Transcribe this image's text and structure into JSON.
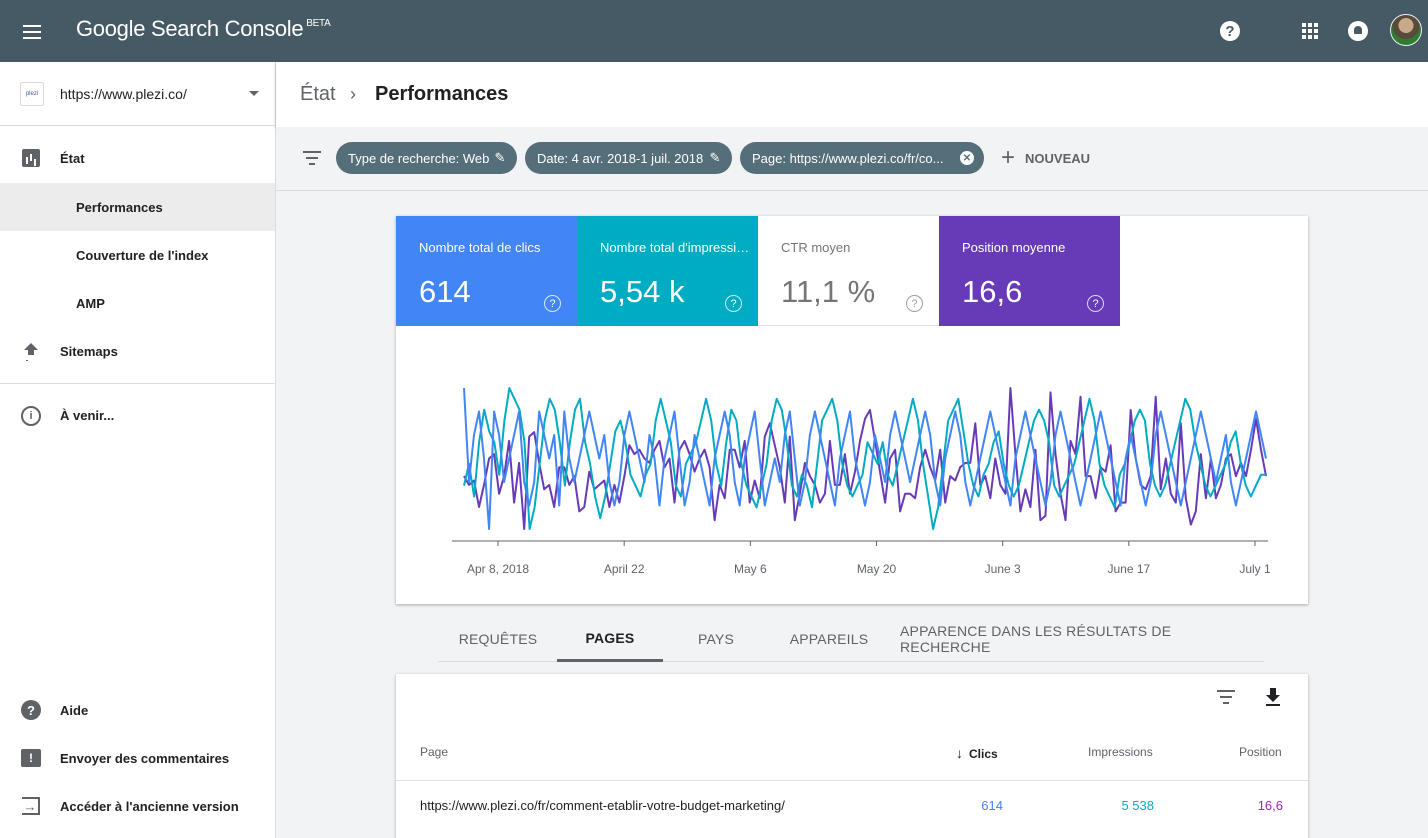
{
  "app": {
    "name": "Google Search Console",
    "badge": "BETA"
  },
  "topbar": {
    "menu_icon": "menu-icon",
    "help_icon": "help-icon",
    "apps_icon": "apps-grid-icon",
    "notifications_icon": "bell-icon"
  },
  "sidebar": {
    "property_url": "https://www.plezi.co/",
    "items": [
      {
        "label": "État",
        "icon": "bar-chart-icon"
      },
      {
        "label": "Performances"
      },
      {
        "label": "Couverture de l'index"
      },
      {
        "label": "AMP"
      },
      {
        "label": "Sitemaps",
        "icon": "upload-icon"
      },
      {
        "label": "À venir...",
        "icon": "info-icon"
      }
    ],
    "footer": [
      {
        "label": "Aide",
        "icon": "help-icon"
      },
      {
        "label": "Envoyer des commentaires",
        "icon": "feedback-icon"
      },
      {
        "label": "Accéder à l'ancienne version",
        "icon": "exit-icon"
      }
    ]
  },
  "breadcrumb": {
    "parent": "État",
    "separator": "›",
    "current": "Performances"
  },
  "filters": {
    "chips": [
      "Type de recherche: Web",
      "Date: 4 avr. 2018-1 juil. 2018",
      "Page: https://www.plezi.co/fr/co..."
    ],
    "new_label": "NOUVEAU"
  },
  "metrics": [
    {
      "label": "Nombre total de clics",
      "value": "614",
      "color": "#4285f4",
      "selected": true
    },
    {
      "label": "Nombre total d'impressions",
      "value": "5,54 k",
      "color": "#00acc1",
      "selected": true
    },
    {
      "label": "CTR moyen",
      "value": "11,1 %",
      "color": "#ffffff",
      "selected": false
    },
    {
      "label": "Position moyenne",
      "value": "16,6",
      "color": "#673ab7",
      "selected": true
    }
  ],
  "chart_data": {
    "type": "line",
    "x_ticks": [
      "Apr 8, 2018",
      "April 22",
      "May 6",
      "May 20",
      "June 3",
      "June 17",
      "July 1"
    ],
    "series": [
      {
        "name": "Position moyenne",
        "color": "#673ab7",
        "values": [
          40,
          38,
          39,
          33,
          38,
          44,
          45,
          36,
          40,
          48,
          34,
          43,
          28,
          49,
          50,
          43,
          37,
          38,
          33,
          42,
          42,
          38,
          40,
          32,
          33,
          41,
          37,
          38,
          39,
          33,
          38,
          34,
          40,
          47,
          45,
          46,
          44,
          43,
          46,
          48,
          42,
          44,
          34,
          46,
          48,
          45,
          41,
          44,
          46,
          42,
          30,
          38,
          35,
          46,
          46,
          42,
          48,
          34,
          39,
          35,
          49,
          52,
          47,
          42,
          34,
          49,
          30,
          36,
          43,
          40,
          38,
          34,
          36,
          48,
          38,
          38,
          45,
          36,
          41,
          48,
          53,
          55,
          48,
          41,
          34,
          44,
          46,
          32,
          36,
          36,
          35,
          42,
          46,
          42,
          39,
          46,
          34,
          40,
          39,
          42,
          43,
          43,
          52,
          38,
          40,
          35,
          44,
          38,
          36,
          60,
          45,
          32,
          37,
          33,
          46,
          30,
          31,
          59,
          45,
          36,
          30,
          48,
          45,
          58,
          40,
          40,
          35,
          42,
          41,
          47,
          32,
          34,
          34,
          55,
          44,
          38,
          37,
          40,
          58,
          37,
          44,
          36,
          34,
          52,
          35,
          29,
          32,
          45,
          35,
          44,
          35,
          38,
          44,
          45,
          40,
          43,
          40,
          46,
          53,
          46,
          40
        ]
      },
      {
        "name": "Nombre total d'impressions",
        "color": "#00acc1",
        "values": [
          56,
          58,
          55,
          60,
          63,
          61,
          60,
          57,
          62,
          65,
          64,
          63,
          60,
          52,
          54,
          58,
          62,
          64,
          63,
          60,
          56,
          60,
          63,
          64,
          60,
          58,
          55,
          53,
          55,
          58,
          61,
          62,
          60,
          57,
          56,
          55,
          57,
          58,
          62,
          64,
          62,
          60,
          56,
          55,
          58,
          59,
          60,
          62,
          64,
          62,
          58,
          56,
          60,
          63,
          62,
          58,
          56,
          55,
          54,
          56,
          58,
          62,
          64,
          63,
          60,
          56,
          55,
          57,
          56,
          54,
          58,
          62,
          63,
          64,
          62,
          58,
          56,
          55,
          56,
          57,
          60,
          59,
          58,
          60,
          57,
          56,
          58,
          60,
          62,
          64,
          62,
          58,
          55,
          52,
          54,
          58,
          62,
          63,
          64,
          61,
          58,
          56,
          55,
          57,
          58,
          60,
          61,
          58,
          56,
          55,
          56,
          58,
          60,
          62,
          63,
          62,
          60,
          56,
          55,
          56,
          57,
          58,
          60,
          62,
          64,
          62,
          58,
          56,
          55,
          54,
          57,
          58,
          60,
          62,
          63,
          62,
          58,
          56,
          55,
          56,
          58,
          60,
          62,
          64,
          63,
          60,
          58,
          56,
          55,
          56,
          57,
          58,
          60,
          61,
          58,
          56,
          55,
          56,
          57,
          57
        ]
      },
      {
        "name": "Nombre total de clics",
        "color": "#4285f4",
        "values": [
          8,
          4,
          6,
          7,
          5,
          2,
          7,
          6,
          4,
          5,
          6,
          7,
          4,
          3,
          4,
          7,
          6,
          5,
          6,
          3,
          7,
          5,
          4,
          5,
          6,
          7,
          6,
          5,
          6,
          4,
          3,
          4,
          6,
          7,
          6,
          5,
          4,
          6,
          5,
          3,
          5,
          6,
          7,
          5,
          3,
          4,
          6,
          5,
          4,
          3,
          5,
          6,
          7,
          6,
          4,
          3,
          5,
          6,
          7,
          5,
          3,
          4,
          5,
          4,
          6,
          7,
          5,
          3,
          4,
          6,
          7,
          6,
          5,
          4,
          3,
          5,
          6,
          7,
          5,
          4,
          3,
          4,
          6,
          5,
          4,
          6,
          7,
          6,
          5,
          4,
          5,
          6,
          7,
          6,
          4,
          3,
          5,
          6,
          7,
          6,
          4,
          3,
          4,
          5,
          6,
          7,
          6,
          5,
          4,
          3,
          5,
          6,
          7,
          6,
          5,
          4,
          3,
          4,
          6,
          7,
          6,
          5,
          4,
          3,
          4,
          5,
          6,
          7,
          6,
          5,
          4,
          3,
          5,
          6,
          5,
          4,
          3,
          4,
          6,
          7,
          6,
          5,
          4,
          3,
          4,
          5,
          6,
          7,
          6,
          5,
          4,
          5,
          6,
          4,
          3,
          4,
          5,
          6,
          7,
          6,
          5
        ]
      }
    ]
  },
  "tabs": [
    {
      "label": "REQUÊTES",
      "active": false
    },
    {
      "label": "PAGES",
      "active": true
    },
    {
      "label": "PAYS",
      "active": false
    },
    {
      "label": "APPAREILS",
      "active": false
    },
    {
      "label": "APPARENCE DANS LES RÉSULTATS DE RECHERCHE",
      "active": false
    }
  ],
  "table": {
    "columns": {
      "page": "Page",
      "clicks": "Clics",
      "sort_arrow": "↓",
      "impressions": "Impressions",
      "position": "Position"
    },
    "rows": [
      {
        "page": "https://www.plezi.co/fr/comment-etablir-votre-budget-marketing/",
        "clicks": "614",
        "impressions": "5 538",
        "position": "16,6"
      }
    ]
  },
  "colors": {
    "topbar": "#455a64",
    "clicks": "#4285f4",
    "impressions": "#00acc1",
    "position": "#673ab7",
    "chip": "#546e7a"
  }
}
